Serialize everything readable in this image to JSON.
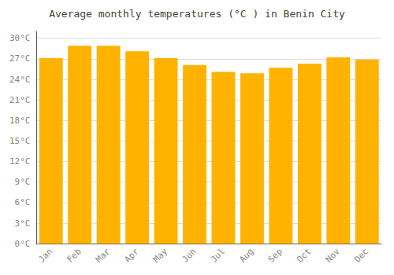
{
  "chart_data": {
    "type": "bar",
    "title": "Average monthly temperatures (°C ) in Benin City",
    "categories": [
      "Jan",
      "Feb",
      "Mar",
      "Apr",
      "May",
      "Jun",
      "Jul",
      "Aug",
      "Sep",
      "Oct",
      "Nov",
      "Dec"
    ],
    "values": [
      27.1,
      28.9,
      28.9,
      28.1,
      27.1,
      26.1,
      25.1,
      24.9,
      25.7,
      26.3,
      27.2,
      26.9
    ],
    "color": "#FFB300",
    "ylim": [
      0,
      31
    ],
    "yticks": [
      {
        "value": 0,
        "label": "0°C"
      },
      {
        "value": 3,
        "label": "3°C"
      },
      {
        "value": 6,
        "label": "6°C"
      },
      {
        "value": 9,
        "label": "9°C"
      },
      {
        "value": 12,
        "label": "12°C"
      },
      {
        "value": 15,
        "label": "15°C"
      },
      {
        "value": 18,
        "label": "18°C"
      },
      {
        "value": 21,
        "label": "21°C"
      },
      {
        "value": 24,
        "label": "24°C"
      },
      {
        "value": 27,
        "label": "27°C"
      },
      {
        "value": 30,
        "label": "30°C"
      }
    ],
    "grid": true
  }
}
